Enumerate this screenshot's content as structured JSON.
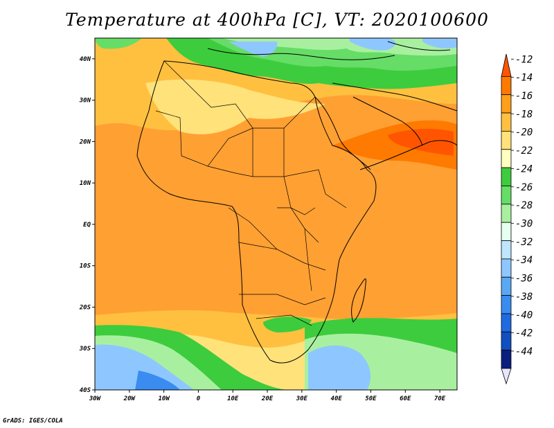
{
  "title": "Temperature at 400hPa [C], VT: 2020100600",
  "credit": "GrADS: IGES/COLA",
  "map": {
    "lon_ticks": [
      "30W",
      "20W",
      "10W",
      "0",
      "10E",
      "20E",
      "30E",
      "40E",
      "50E",
      "60E",
      "70E"
    ],
    "lat_ticks": [
      "40N",
      "30N",
      "20N",
      "10N",
      "EQ",
      "10S",
      "20S",
      "30S",
      "40S"
    ]
  },
  "colorbar": {
    "labels": [
      "-12",
      "-14",
      "-16",
      "-18",
      "-20",
      "-22",
      "-24",
      "-26",
      "-28",
      "-30",
      "-32",
      "-34",
      "-36",
      "-38",
      "-40",
      "-42",
      "-44"
    ],
    "colors": [
      "#ff5500",
      "#ff7a00",
      "#ff9f1a",
      "#ffc040",
      "#ffe27a",
      "#ffffc0",
      "#3dcc3d",
      "#66dd66",
      "#a8f0a0",
      "#e6fff0",
      "#bfe6ff",
      "#8ec7ff",
      "#5aa8f5",
      "#3a8cf0",
      "#1f6ae0",
      "#104fc0",
      "#0a1f80"
    ]
  }
}
